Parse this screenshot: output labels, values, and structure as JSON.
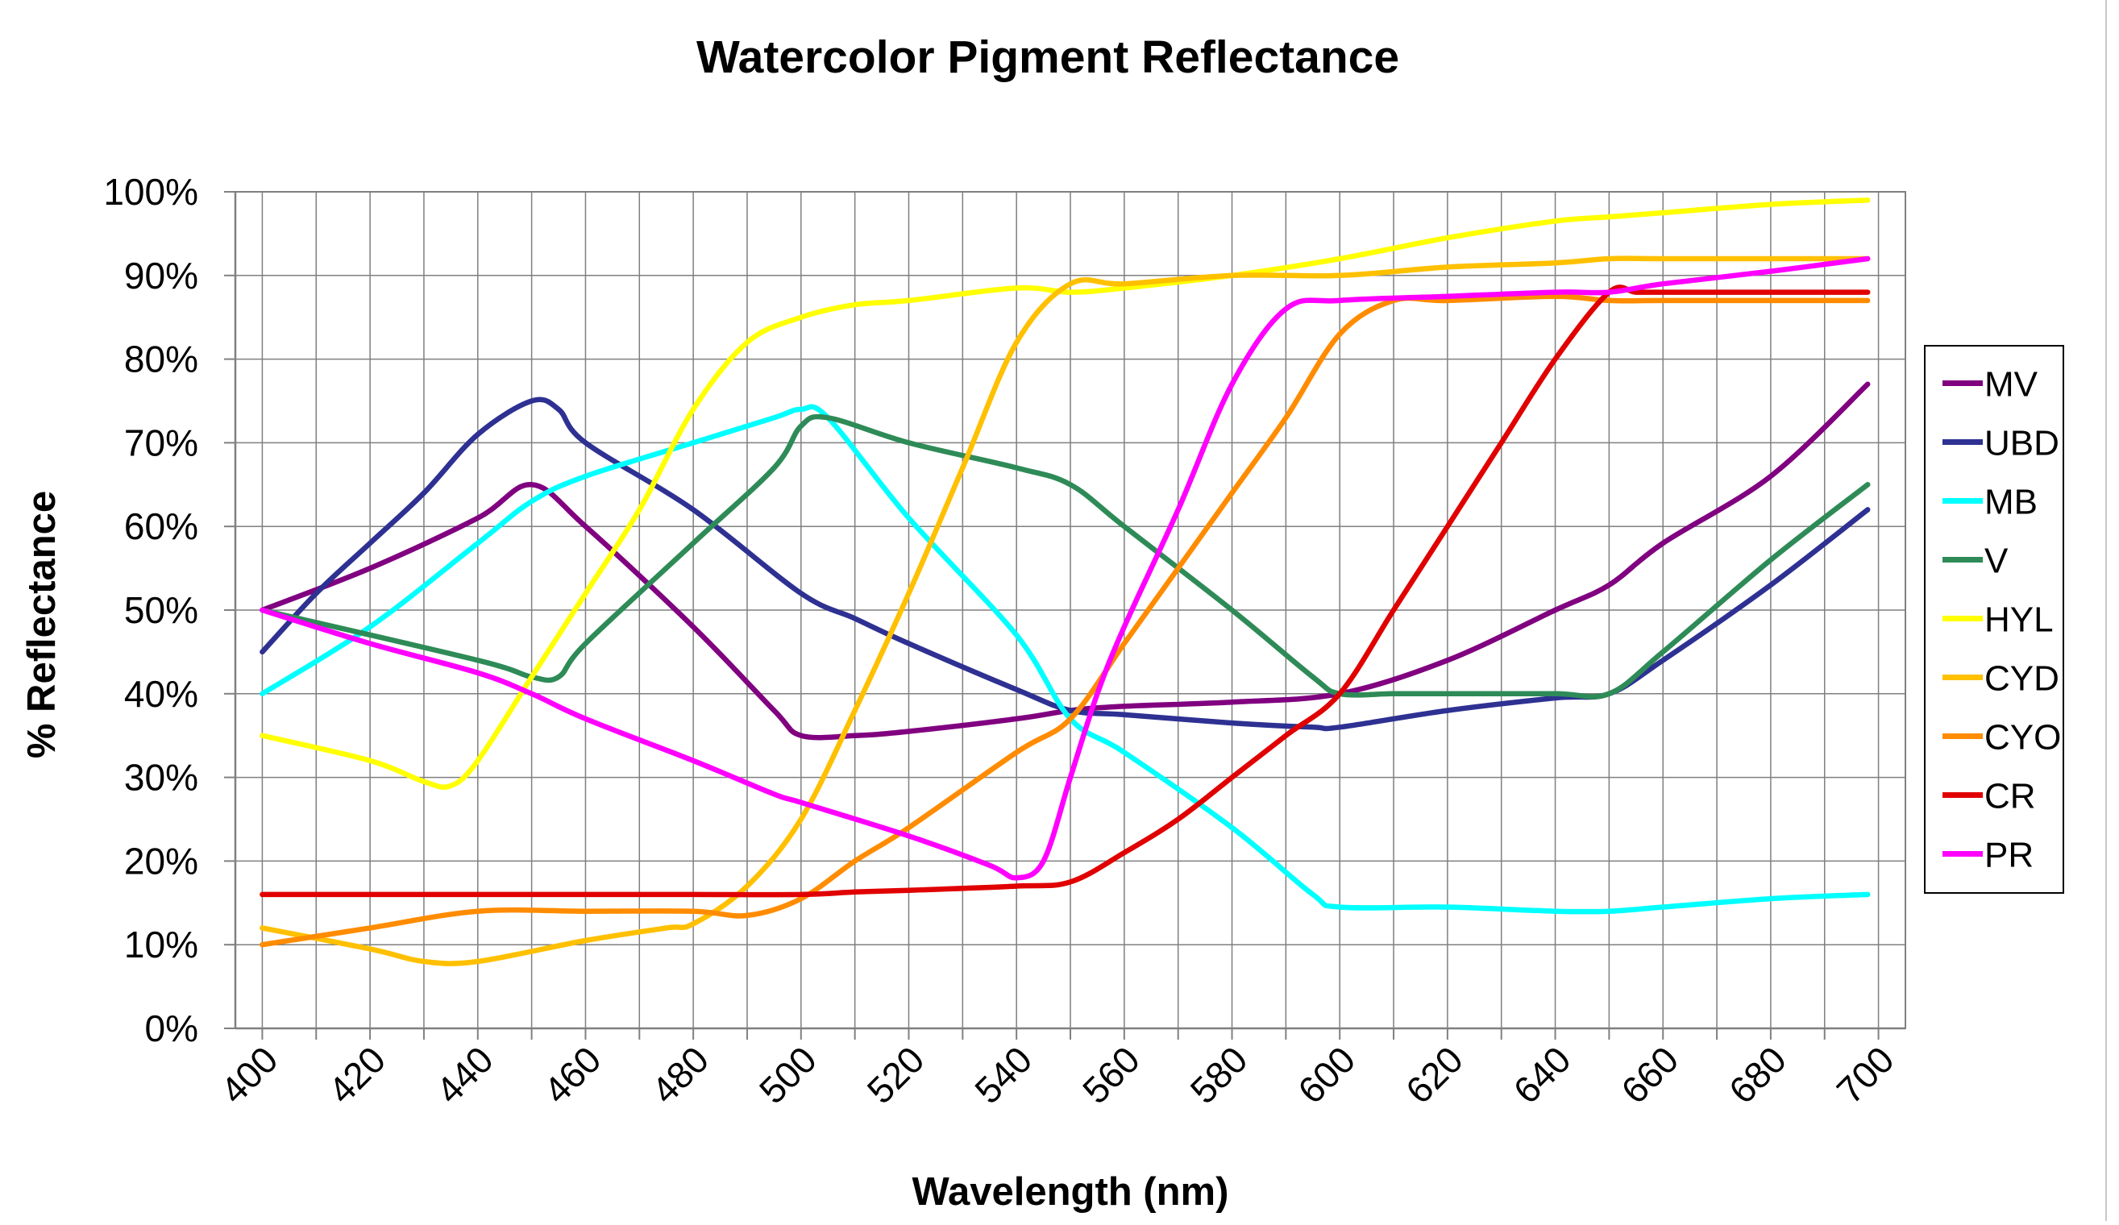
{
  "chart_data": {
    "type": "line",
    "title": "Watercolor Pigment Reflectance",
    "xlabel": "Wavelength (nm)",
    "ylabel": "% Reflectance",
    "xlim": [
      395,
      705
    ],
    "ylim": [
      0,
      100
    ],
    "x_ticks": [
      400,
      420,
      440,
      460,
      480,
      500,
      520,
      540,
      560,
      580,
      600,
      620,
      640,
      660,
      680,
      700
    ],
    "y_ticks": [
      0,
      10,
      20,
      30,
      40,
      50,
      60,
      70,
      80,
      90,
      100
    ],
    "y_tick_format": "percent",
    "grid": true,
    "legend_position": "right",
    "series": [
      {
        "name": "MV",
        "color": "#800080",
        "points": [
          [
            400,
            50
          ],
          [
            420,
            55
          ],
          [
            440,
            61
          ],
          [
            450,
            65
          ],
          [
            460,
            60
          ],
          [
            480,
            48
          ],
          [
            495,
            38
          ],
          [
            500,
            35
          ],
          [
            510,
            35
          ],
          [
            520,
            35.5
          ],
          [
            540,
            37
          ],
          [
            550,
            38
          ],
          [
            560,
            38.5
          ],
          [
            580,
            39
          ],
          [
            600,
            40
          ],
          [
            620,
            44
          ],
          [
            640,
            50
          ],
          [
            650,
            53
          ],
          [
            660,
            58
          ],
          [
            680,
            66
          ],
          [
            698,
            77
          ]
        ]
      },
      {
        "name": "UBD",
        "color": "#2E3192",
        "points": [
          [
            400,
            45
          ],
          [
            410,
            52
          ],
          [
            420,
            58
          ],
          [
            430,
            64
          ],
          [
            440,
            71
          ],
          [
            450,
            75
          ],
          [
            455,
            74
          ],
          [
            460,
            70
          ],
          [
            480,
            62
          ],
          [
            500,
            52
          ],
          [
            510,
            49
          ],
          [
            520,
            46
          ],
          [
            540,
            40.5
          ],
          [
            550,
            38
          ],
          [
            560,
            37.5
          ],
          [
            580,
            36.5
          ],
          [
            595,
            36
          ],
          [
            600,
            36
          ],
          [
            620,
            38
          ],
          [
            640,
            39.5
          ],
          [
            650,
            40
          ],
          [
            660,
            44
          ],
          [
            680,
            53
          ],
          [
            698,
            62
          ]
        ]
      },
      {
        "name": "MB",
        "color": "#00FFFF",
        "points": [
          [
            400,
            40
          ],
          [
            420,
            48
          ],
          [
            440,
            58
          ],
          [
            450,
            63
          ],
          [
            460,
            66
          ],
          [
            480,
            70
          ],
          [
            495,
            73
          ],
          [
            500,
            74
          ],
          [
            505,
            73
          ],
          [
            520,
            61
          ],
          [
            540,
            47
          ],
          [
            550,
            37
          ],
          [
            560,
            33
          ],
          [
            580,
            24
          ],
          [
            595,
            16
          ],
          [
            600,
            14.5
          ],
          [
            620,
            14.5
          ],
          [
            640,
            14
          ],
          [
            650,
            14
          ],
          [
            660,
            14.5
          ],
          [
            680,
            15.5
          ],
          [
            698,
            16
          ]
        ]
      },
      {
        "name": "V",
        "color": "#2E8B57",
        "points": [
          [
            400,
            50
          ],
          [
            440,
            44
          ],
          [
            450,
            42
          ],
          [
            455,
            42
          ],
          [
            460,
            46
          ],
          [
            480,
            58
          ],
          [
            495,
            67
          ],
          [
            500,
            72
          ],
          [
            505,
            73
          ],
          [
            520,
            70
          ],
          [
            540,
            67
          ],
          [
            550,
            65
          ],
          [
            560,
            60
          ],
          [
            580,
            50
          ],
          [
            595,
            42
          ],
          [
            600,
            40
          ],
          [
            610,
            40
          ],
          [
            620,
            40
          ],
          [
            640,
            40
          ],
          [
            650,
            40
          ],
          [
            660,
            45
          ],
          [
            680,
            56
          ],
          [
            698,
            65
          ]
        ]
      },
      {
        "name": "HYL",
        "color": "#FFFF00",
        "points": [
          [
            400,
            35
          ],
          [
            420,
            32
          ],
          [
            430,
            29.5
          ],
          [
            435,
            29
          ],
          [
            440,
            32
          ],
          [
            450,
            42
          ],
          [
            460,
            52
          ],
          [
            470,
            62
          ],
          [
            480,
            74
          ],
          [
            490,
            82
          ],
          [
            500,
            85
          ],
          [
            510,
            86.5
          ],
          [
            520,
            87
          ],
          [
            540,
            88.5
          ],
          [
            550,
            88
          ],
          [
            560,
            88.5
          ],
          [
            580,
            90
          ],
          [
            600,
            92
          ],
          [
            620,
            94.5
          ],
          [
            640,
            96.5
          ],
          [
            650,
            97
          ],
          [
            660,
            97.5
          ],
          [
            680,
            98.5
          ],
          [
            698,
            99
          ]
        ]
      },
      {
        "name": "CYD",
        "color": "#FFC000",
        "points": [
          [
            400,
            12
          ],
          [
            420,
            9.5
          ],
          [
            430,
            8
          ],
          [
            440,
            8
          ],
          [
            460,
            10.5
          ],
          [
            475,
            12
          ],
          [
            480,
            12.5
          ],
          [
            490,
            17
          ],
          [
            500,
            25
          ],
          [
            510,
            38
          ],
          [
            520,
            52
          ],
          [
            530,
            67
          ],
          [
            540,
            82
          ],
          [
            550,
            89
          ],
          [
            560,
            89
          ],
          [
            580,
            90
          ],
          [
            600,
            90
          ],
          [
            620,
            91
          ],
          [
            640,
            91.5
          ],
          [
            650,
            92
          ],
          [
            660,
            92
          ],
          [
            680,
            92
          ],
          [
            698,
            92
          ]
        ]
      },
      {
        "name": "CYO",
        "color": "#FF8C00",
        "points": [
          [
            400,
            10
          ],
          [
            420,
            12
          ],
          [
            440,
            14
          ],
          [
            460,
            14
          ],
          [
            480,
            14
          ],
          [
            490,
            13.5
          ],
          [
            500,
            15.5
          ],
          [
            510,
            20
          ],
          [
            520,
            24
          ],
          [
            540,
            33
          ],
          [
            550,
            37
          ],
          [
            560,
            46
          ],
          [
            570,
            55
          ],
          [
            580,
            64
          ],
          [
            590,
            73
          ],
          [
            600,
            83
          ],
          [
            610,
            87
          ],
          [
            620,
            87
          ],
          [
            640,
            87.5
          ],
          [
            650,
            87
          ],
          [
            660,
            87
          ],
          [
            680,
            87
          ],
          [
            698,
            87
          ]
        ]
      },
      {
        "name": "CR",
        "color": "#E00000",
        "points": [
          [
            400,
            16
          ],
          [
            420,
            16
          ],
          [
            440,
            16
          ],
          [
            460,
            16
          ],
          [
            480,
            16
          ],
          [
            500,
            16
          ],
          [
            510,
            16.3
          ],
          [
            520,
            16.5
          ],
          [
            540,
            17
          ],
          [
            550,
            17.5
          ],
          [
            560,
            21
          ],
          [
            570,
            25
          ],
          [
            580,
            30
          ],
          [
            590,
            35
          ],
          [
            600,
            40
          ],
          [
            610,
            50
          ],
          [
            620,
            60
          ],
          [
            630,
            70
          ],
          [
            640,
            80
          ],
          [
            650,
            88
          ],
          [
            655,
            88
          ],
          [
            660,
            88
          ],
          [
            680,
            88
          ],
          [
            698,
            88
          ]
        ]
      },
      {
        "name": "PR",
        "color": "#FF00FF",
        "points": [
          [
            400,
            50
          ],
          [
            420,
            46
          ],
          [
            440,
            42.5
          ],
          [
            450,
            40
          ],
          [
            460,
            37
          ],
          [
            480,
            32
          ],
          [
            495,
            28
          ],
          [
            500,
            27
          ],
          [
            520,
            23
          ],
          [
            535,
            19.5
          ],
          [
            540,
            18
          ],
          [
            545,
            20
          ],
          [
            550,
            30
          ],
          [
            555,
            40
          ],
          [
            560,
            48
          ],
          [
            570,
            62
          ],
          [
            580,
            77
          ],
          [
            590,
            86
          ],
          [
            600,
            87
          ],
          [
            620,
            87.5
          ],
          [
            640,
            88
          ],
          [
            650,
            88
          ],
          [
            660,
            89
          ],
          [
            680,
            90.5
          ],
          [
            698,
            92
          ]
        ]
      }
    ]
  }
}
